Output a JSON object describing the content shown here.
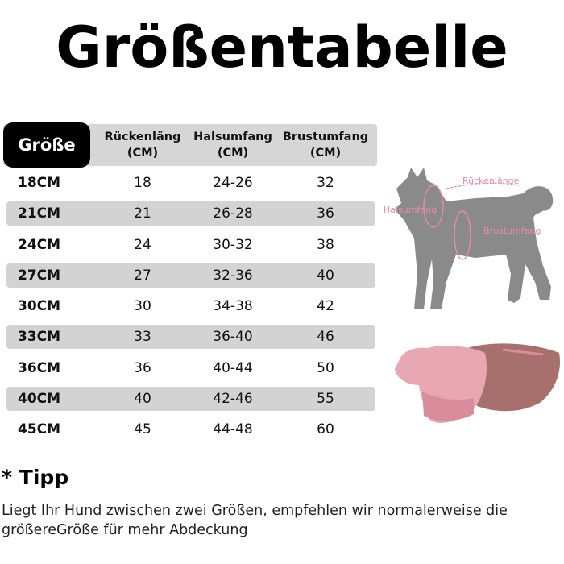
{
  "title": "Größentabelle",
  "table": {
    "headers": {
      "size": "Größe",
      "back_length": [
        "Rückenläng",
        "(CM)"
      ],
      "neck": [
        "Halsumfang",
        "(CM)"
      ],
      "chest": [
        "Brustumfang",
        "(CM)"
      ]
    },
    "rows": [
      {
        "size": "18CM",
        "back": "18",
        "neck": "24-26",
        "chest": "32"
      },
      {
        "size": "21CM",
        "back": "21",
        "neck": "26-28",
        "chest": "36"
      },
      {
        "size": "24CM",
        "back": "24",
        "neck": "30-32",
        "chest": "38"
      },
      {
        "size": "27CM",
        "back": "27",
        "neck": "32-36",
        "chest": "40"
      },
      {
        "size": "30CM",
        "back": "30",
        "neck": "34-38",
        "chest": "42"
      },
      {
        "size": "33CM",
        "back": "33",
        "neck": "36-40",
        "chest": "46"
      },
      {
        "size": "36CM",
        "back": "36",
        "neck": "40-44",
        "chest": "50"
      },
      {
        "size": "40CM",
        "back": "40",
        "neck": "42-46",
        "chest": "55"
      },
      {
        "size": "45CM",
        "back": "45",
        "neck": "44-48",
        "chest": "60"
      }
    ]
  },
  "diagram": {
    "back_label": "Rückenlänge",
    "neck_label": "Halsumfang",
    "chest_label": "Brustumfang",
    "label_color": "#e98aa6",
    "dog_color": "#8a8a8a"
  },
  "coat": {
    "main_color": "#e7a8b4",
    "fleece_color": "#a8706c"
  },
  "tip": {
    "title": "* Tipp",
    "text": "Liegt Ihr Hund zwischen zwei Größen, empfehlen wir normalerweise die größereGröße für mehr Abdeckung"
  }
}
